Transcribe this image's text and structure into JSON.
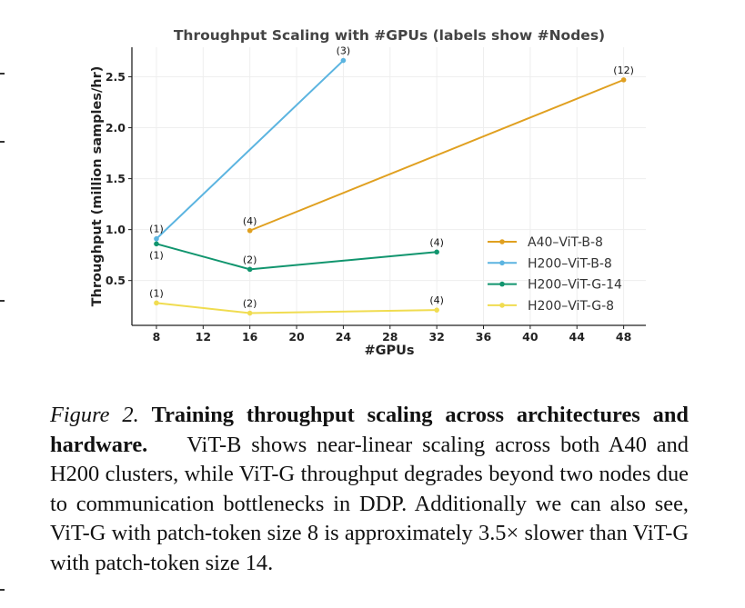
{
  "chart_data": {
    "type": "line",
    "title": "Throughput Scaling with #GPUs (labels show #Nodes)",
    "xlabel": "#GPUs",
    "ylabel": "Throughput (million samples/hr)",
    "xlim": [
      5.9,
      49.9
    ],
    "ylim": [
      0.06,
      2.79
    ],
    "xticks": [
      8,
      12,
      16,
      20,
      24,
      28,
      32,
      36,
      40,
      44,
      48
    ],
    "yticks": [
      0.5,
      1.0,
      1.5,
      2.0,
      2.5
    ],
    "grid": true,
    "legend_position": "lower-right",
    "series": [
      {
        "name": "A40–ViT-B-8",
        "color": "#E0A020",
        "x": [
          16,
          48
        ],
        "y": [
          0.99,
          2.47
        ],
        "labels": [
          "(4)",
          "(12)"
        ]
      },
      {
        "name": "H200–ViT-B-8",
        "color": "#5BB4E0",
        "x": [
          8,
          24
        ],
        "y": [
          0.91,
          2.66
        ],
        "labels": [
          "(1)",
          "(3)"
        ]
      },
      {
        "name": "H200–ViT-G-14",
        "color": "#11956E",
        "x": [
          8,
          16,
          32
        ],
        "y": [
          0.86,
          0.61,
          0.78
        ],
        "labels": [
          "(1)",
          "(2)",
          "(4)"
        ]
      },
      {
        "name": "H200–ViT-G-8",
        "color": "#F0DC50",
        "x": [
          8,
          16,
          32
        ],
        "y": [
          0.28,
          0.18,
          0.21
        ],
        "labels": [
          "(1)",
          "(2)",
          "(4)"
        ]
      }
    ]
  },
  "caption": {
    "figure_label": "Figure 2.",
    "bold_title": "Training throughput scaling across architectures and hardware.",
    "body": "ViT-B shows near-linear scaling across both A40 and H200 clusters, while ViT-G throughput degrades beyond two nodes due to communication bottlenecks in DDP. Additionally we can also see, ViT-G with patch-token size 8 is approximately 3.5× slower than ViT-G with patch-token size 14."
  }
}
